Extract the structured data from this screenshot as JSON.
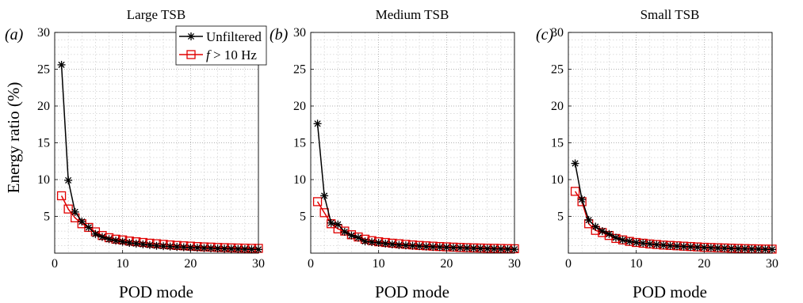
{
  "chart_data": [
    {
      "type": "line",
      "panel_label": "(a)",
      "title": "Large TSB",
      "xlabel": "POD mode",
      "ylabel": "Energy ratio (%)",
      "xlim": [
        0,
        30
      ],
      "ylim": [
        0,
        30
      ],
      "xticks": [
        0,
        10,
        20,
        30
      ],
      "yticks": [
        5,
        10,
        15,
        20,
        25,
        30
      ],
      "grid": true,
      "minor_grid": true,
      "legend": "top-right",
      "x": [
        1,
        2,
        3,
        4,
        5,
        6,
        7,
        8,
        9,
        10,
        11,
        12,
        13,
        14,
        15,
        16,
        17,
        18,
        19,
        20,
        21,
        22,
        23,
        24,
        25,
        26,
        27,
        28,
        29,
        30
      ],
      "series": [
        {
          "name": "Unfiltered",
          "color": "#000000",
          "marker": "asterisk",
          "values": [
            25.6,
            9.9,
            5.6,
            4.3,
            3.5,
            2.6,
            2.2,
            1.9,
            1.7,
            1.55,
            1.4,
            1.3,
            1.2,
            1.1,
            1.0,
            0.95,
            0.9,
            0.85,
            0.8,
            0.75,
            0.72,
            0.69,
            0.66,
            0.63,
            0.6,
            0.58,
            0.56,
            0.54,
            0.52,
            0.5
          ]
        },
        {
          "name": "f > 10 Hz",
          "color": "#e00000",
          "marker": "square",
          "values": [
            7.8,
            6.0,
            4.8,
            4.0,
            3.5,
            2.9,
            2.4,
            2.1,
            1.9,
            1.8,
            1.65,
            1.55,
            1.45,
            1.35,
            1.28,
            1.2,
            1.12,
            1.05,
            1.0,
            0.95,
            0.9,
            0.85,
            0.82,
            0.78,
            0.75,
            0.72,
            0.7,
            0.68,
            0.66,
            0.65
          ]
        }
      ]
    },
    {
      "type": "line",
      "panel_label": "(b)",
      "title": "Medium TSB",
      "xlabel": "POD mode",
      "xlim": [
        0,
        30
      ],
      "ylim": [
        0,
        30
      ],
      "xticks": [
        0,
        10,
        20,
        30
      ],
      "yticks": [
        5,
        10,
        15,
        20,
        25,
        30
      ],
      "grid": true,
      "minor_grid": true,
      "x": [
        1,
        2,
        3,
        4,
        5,
        6,
        7,
        8,
        9,
        10,
        11,
        12,
        13,
        14,
        15,
        16,
        17,
        18,
        19,
        20,
        21,
        22,
        23,
        24,
        25,
        26,
        27,
        28,
        29,
        30
      ],
      "series": [
        {
          "name": "Unfiltered",
          "color": "#000000",
          "marker": "asterisk",
          "values": [
            17.6,
            7.8,
            4.1,
            3.9,
            2.9,
            2.4,
            2.1,
            1.6,
            1.5,
            1.4,
            1.3,
            1.2,
            1.1,
            1.05,
            1.0,
            0.95,
            0.9,
            0.85,
            0.82,
            0.78,
            0.75,
            0.72,
            0.69,
            0.66,
            0.63,
            0.6,
            0.58,
            0.56,
            0.54,
            0.52
          ]
        },
        {
          "name": "f > 10 Hz",
          "color": "#e00000",
          "marker": "square",
          "values": [
            7.0,
            5.5,
            4.0,
            3.3,
            3.0,
            2.5,
            2.2,
            1.9,
            1.7,
            1.55,
            1.45,
            1.35,
            1.28,
            1.2,
            1.12,
            1.05,
            1.0,
            0.95,
            0.9,
            0.86,
            0.82,
            0.78,
            0.75,
            0.72,
            0.7,
            0.68,
            0.66,
            0.64,
            0.62,
            0.6
          ]
        }
      ]
    },
    {
      "type": "line",
      "panel_label": "(c)",
      "title": "Small TSB",
      "xlabel": "POD mode",
      "xlim": [
        0,
        30
      ],
      "ylim": [
        0,
        30
      ],
      "xticks": [
        0,
        10,
        20,
        30
      ],
      "yticks": [
        5,
        10,
        15,
        20,
        25,
        30
      ],
      "grid": true,
      "minor_grid": true,
      "x": [
        1,
        2,
        3,
        4,
        5,
        6,
        7,
        8,
        9,
        10,
        11,
        12,
        13,
        14,
        15,
        16,
        17,
        18,
        19,
        20,
        21,
        22,
        23,
        24,
        25,
        26,
        27,
        28,
        29,
        30
      ],
      "series": [
        {
          "name": "Unfiltered",
          "color": "#000000",
          "marker": "asterisk",
          "values": [
            12.2,
            7.3,
            4.5,
            3.6,
            3.0,
            2.6,
            2.1,
            1.8,
            1.6,
            1.45,
            1.35,
            1.25,
            1.15,
            1.08,
            1.0,
            0.95,
            0.9,
            0.85,
            0.8,
            0.76,
            0.72,
            0.69,
            0.66,
            0.63,
            0.6,
            0.58,
            0.56,
            0.54,
            0.52,
            0.5
          ]
        },
        {
          "name": "f > 10 Hz",
          "color": "#e00000",
          "marker": "square",
          "values": [
            8.4,
            7.0,
            4.0,
            3.1,
            2.8,
            2.4,
            2.0,
            1.8,
            1.6,
            1.45,
            1.35,
            1.25,
            1.18,
            1.1,
            1.05,
            1.0,
            0.95,
            0.9,
            0.85,
            0.8,
            0.77,
            0.74,
            0.71,
            0.68,
            0.65,
            0.62,
            0.6,
            0.58,
            0.56,
            0.55
          ]
        }
      ]
    }
  ],
  "legend": {
    "entries": [
      {
        "prefix": "",
        "italic": "",
        "suffix": "Unfiltered"
      },
      {
        "prefix": "",
        "italic": "f",
        "suffix": " > 10 Hz"
      }
    ]
  }
}
